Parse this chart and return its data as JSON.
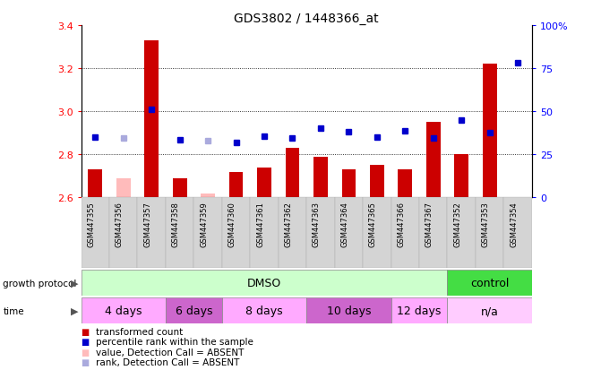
{
  "title": "GDS3802 / 1448366_at",
  "samples": [
    "GSM447355",
    "GSM447356",
    "GSM447357",
    "GSM447358",
    "GSM447359",
    "GSM447360",
    "GSM447361",
    "GSM447362",
    "GSM447363",
    "GSM447364",
    "GSM447365",
    "GSM447366",
    "GSM447367",
    "GSM447352",
    "GSM447353",
    "GSM447354"
  ],
  "bar_values": [
    2.73,
    2.69,
    3.33,
    2.69,
    2.62,
    2.72,
    2.74,
    2.83,
    2.79,
    2.73,
    2.75,
    2.73,
    2.95,
    2.8,
    3.22,
    2.6
  ],
  "bar_absent": [
    false,
    true,
    false,
    false,
    true,
    false,
    false,
    false,
    false,
    false,
    false,
    false,
    false,
    false,
    false,
    false
  ],
  "dot_values": [
    2.88,
    2.875,
    3.01,
    2.87,
    2.865,
    2.855,
    2.885,
    2.875,
    2.92,
    2.905,
    2.88,
    2.91,
    2.875,
    2.96,
    2.9,
    3.225
  ],
  "dot_absent": [
    false,
    true,
    false,
    false,
    true,
    false,
    false,
    false,
    false,
    false,
    false,
    false,
    false,
    false,
    false,
    false
  ],
  "ylim_left": [
    2.6,
    3.4
  ],
  "ylim_right": [
    0,
    100
  ],
  "yticks_left": [
    2.6,
    2.8,
    3.0,
    3.2,
    3.4
  ],
  "yticks_right": [
    0,
    25,
    50,
    75,
    100
  ],
  "bar_color_normal": "#cc0000",
  "bar_color_absent": "#ffbbbb",
  "dot_color_normal": "#0000cc",
  "dot_color_absent": "#aaaadd",
  "growth_protocol_groups": [
    {
      "label": "DMSO",
      "start": 0,
      "end": 13,
      "color": "#ccffcc"
    },
    {
      "label": "control",
      "start": 13,
      "end": 16,
      "color": "#44dd44"
    }
  ],
  "time_groups": [
    {
      "label": "4 days",
      "start": 0,
      "end": 3,
      "color": "#ffaaff"
    },
    {
      "label": "6 days",
      "start": 3,
      "end": 5,
      "color": "#cc66cc"
    },
    {
      "label": "8 days",
      "start": 5,
      "end": 8,
      "color": "#ffaaff"
    },
    {
      "label": "10 days",
      "start": 8,
      "end": 11,
      "color": "#cc66cc"
    },
    {
      "label": "12 days",
      "start": 11,
      "end": 13,
      "color": "#ffaaff"
    },
    {
      "label": "n/a",
      "start": 13,
      "end": 16,
      "color": "#ffccff"
    }
  ],
  "legend_items": [
    {
      "label": "transformed count",
      "color": "#cc0000"
    },
    {
      "label": "percentile rank within the sample",
      "color": "#0000cc"
    },
    {
      "label": "value, Detection Call = ABSENT",
      "color": "#ffbbbb"
    },
    {
      "label": "rank, Detection Call = ABSENT",
      "color": "#aaaadd"
    }
  ]
}
